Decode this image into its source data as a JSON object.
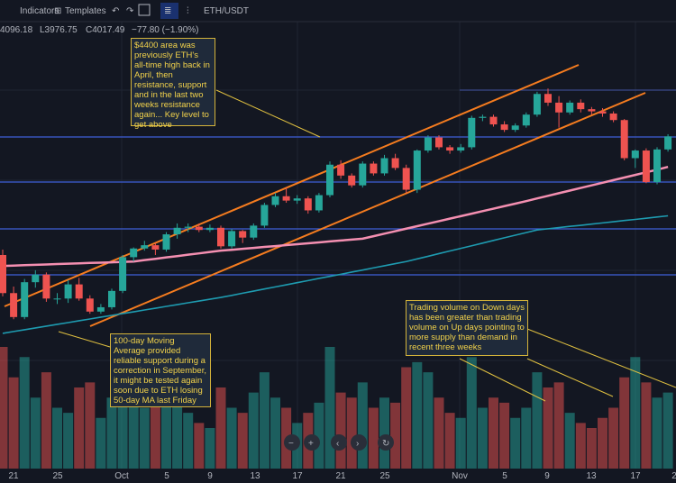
{
  "toolbar": {
    "indicators": "Indicators",
    "templates": "Templates",
    "symbol": "ETH/USDT"
  },
  "ohlc": {
    "high": "4096.18",
    "low": "L3976.75",
    "close": "C4017.49",
    "change": "−77.80 (−1.90%)"
  },
  "annotations": [
    "$4400 area was previously ETH's all-time high back in April, then resistance, support and in the last two weeks resistance again... Key level to get above",
    "100-day Moving Average provided reliable support during a correction in September, it might be tested again soon due to ETH losing 50-day MA last Friday",
    "Trading volume on Down days has been greater than trading volume on Up days pointing to more supply than demand in recent three weeks"
  ],
  "x_labels": [
    "21",
    "25",
    "Oct",
    "5",
    "9",
    "13",
    "17",
    "21",
    "25",
    "Nov",
    "5",
    "9",
    "13",
    "17",
    "2"
  ],
  "chart_data": {
    "type": "candlestick",
    "candles": [
      [
        3330,
        3380,
        2950,
        2980
      ],
      [
        2980,
        3040,
        2740,
        2760
      ],
      [
        2760,
        3110,
        2740,
        3080
      ],
      [
        3080,
        3190,
        3030,
        3150
      ],
      [
        3150,
        3170,
        2900,
        2930
      ],
      [
        2930,
        2980,
        2880,
        2930
      ],
      [
        2930,
        3100,
        2890,
        3060
      ],
      [
        3060,
        3120,
        2910,
        2930
      ],
      [
        2930,
        2960,
        2790,
        2810
      ],
      [
        2810,
        2880,
        2790,
        2850
      ],
      [
        2850,
        3020,
        2830,
        3000
      ],
      [
        3000,
        3330,
        2980,
        3310
      ],
      [
        3310,
        3400,
        3270,
        3390
      ],
      [
        3390,
        3460,
        3370,
        3420
      ],
      [
        3420,
        3440,
        3330,
        3380
      ],
      [
        3380,
        3540,
        3360,
        3520
      ],
      [
        3520,
        3620,
        3480,
        3580
      ],
      [
        3580,
        3620,
        3540,
        3590
      ],
      [
        3590,
        3620,
        3540,
        3560
      ],
      [
        3560,
        3610,
        3540,
        3580
      ],
      [
        3580,
        3600,
        3390,
        3410
      ],
      [
        3410,
        3570,
        3390,
        3550
      ],
      [
        3550,
        3560,
        3440,
        3490
      ],
      [
        3490,
        3620,
        3470,
        3600
      ],
      [
        3600,
        3810,
        3580,
        3790
      ],
      [
        3790,
        3900,
        3770,
        3870
      ],
      [
        3870,
        3950,
        3810,
        3830
      ],
      [
        3830,
        3880,
        3800,
        3850
      ],
      [
        3850,
        3870,
        3710,
        3740
      ],
      [
        3740,
        3900,
        3720,
        3880
      ],
      [
        3880,
        4190,
        3860,
        4160
      ],
      [
        4160,
        4200,
        4030,
        4060
      ],
      [
        4060,
        4080,
        3950,
        3970
      ],
      [
        3970,
        4190,
        3950,
        4170
      ],
      [
        4170,
        4190,
        4060,
        4080
      ],
      [
        4080,
        4250,
        4060,
        4220
      ],
      [
        4220,
        4260,
        4110,
        4130
      ],
      [
        4130,
        4160,
        3900,
        3930
      ],
      [
        3930,
        4300,
        3900,
        4290
      ],
      [
        4290,
        4430,
        4270,
        4410
      ],
      [
        4410,
        4430,
        4300,
        4320
      ],
      [
        4320,
        4340,
        4260,
        4290
      ],
      [
        4290,
        4350,
        4270,
        4320
      ],
      [
        4320,
        4610,
        4300,
        4590
      ],
      [
        4590,
        4620,
        4560,
        4600
      ],
      [
        4600,
        4620,
        4510,
        4530
      ],
      [
        4530,
        4560,
        4460,
        4480
      ],
      [
        4480,
        4540,
        4460,
        4520
      ],
      [
        4520,
        4640,
        4500,
        4620
      ],
      [
        4620,
        4830,
        4600,
        4810
      ],
      [
        4810,
        4860,
        4700,
        4730
      ],
      [
        4730,
        4790,
        4500,
        4640
      ],
      [
        4640,
        4750,
        4620,
        4730
      ],
      [
        4730,
        4760,
        4640,
        4670
      ],
      [
        4670,
        4690,
        4620,
        4650
      ],
      [
        4650,
        4680,
        4600,
        4630
      ],
      [
        4630,
        4650,
        4550,
        4570
      ],
      [
        4570,
        4580,
        4200,
        4220
      ],
      [
        4220,
        4300,
        4130,
        4290
      ],
      [
        4290,
        4310,
        3990,
        4000
      ],
      [
        4000,
        4320,
        3980,
        4300
      ],
      [
        4300,
        4440,
        4280,
        4420
      ]
    ],
    "volume": [
      120,
      90,
      110,
      70,
      95,
      60,
      55,
      80,
      85,
      50,
      70,
      110,
      65,
      60,
      75,
      70,
      65,
      55,
      45,
      40,
      80,
      60,
      55,
      75,
      95,
      70,
      60,
      45,
      55,
      65,
      120,
      75,
      70,
      85,
      60,
      70,
      65,
      100,
      105,
      95,
      70,
      55,
      50,
      110,
      60,
      70,
      65,
      50,
      60,
      95,
      80,
      85,
      55,
      45,
      40,
      50,
      60,
      90,
      110,
      85,
      70,
      75
    ],
    "ma50": [
      3230,
      3233,
      3237,
      3240,
      3243,
      3247,
      3250,
      3253,
      3257,
      3260,
      3263,
      3267,
      3270,
      3283,
      3295,
      3308,
      3320,
      3333,
      3345,
      3358,
      3370,
      3378,
      3387,
      3395,
      3404,
      3412,
      3421,
      3429,
      3438,
      3446,
      3455,
      3463,
      3472,
      3480,
      3503,
      3526,
      3549,
      3572,
      3595,
      3618,
      3641,
      3664,
      3687,
      3710,
      3733,
      3756,
      3779,
      3802,
      3825,
      3850,
      3874,
      3898,
      3922,
      3946,
      3970,
      3994,
      4018,
      4042,
      4066,
      4090,
      4114,
      4140
    ],
    "ma100": [
      2610,
      2627,
      2643,
      2660,
      2676,
      2693,
      2709,
      2726,
      2742,
      2759,
      2775,
      2792,
      2808,
      2825,
      2841,
      2858,
      2874,
      2891,
      2907,
      2924,
      2940,
      2959,
      2979,
      2998,
      3018,
      3037,
      3056,
      3076,
      3095,
      3115,
      3134,
      3153,
      3173,
      3192,
      3212,
      3231,
      3251,
      3270,
      3294,
      3318,
      3343,
      3367,
      3391,
      3415,
      3439,
      3464,
      3488,
      3512,
      3536,
      3560,
      3571,
      3582,
      3593,
      3603,
      3614,
      3625,
      3636,
      3647,
      3657,
      3668,
      3679,
      3690
    ],
    "up_color": "#26a69a",
    "down_color": "#ef5350",
    "ma50_color": "#f48fb1",
    "ma100_color": "#1e9bb0"
  }
}
